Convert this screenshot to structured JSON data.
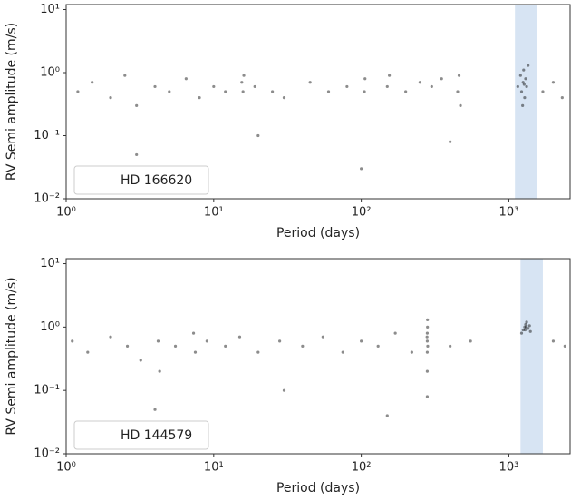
{
  "chart_data": [
    {
      "type": "scatter",
      "xlabel": "Period (days)",
      "ylabel": "RV Semi amplitude (m/s)",
      "log_x": true,
      "log_y": true,
      "legend": "lower left",
      "xlim": [
        1,
        2600
      ],
      "ylim": [
        0.01,
        12
      ],
      "xticks": [
        {
          "value": 1,
          "label": "10⁰"
        },
        {
          "value": 10,
          "label": "10¹"
        },
        {
          "value": 100,
          "label": "10²"
        },
        {
          "value": 1000,
          "label": "10³"
        }
      ],
      "yticks": [
        {
          "value": 0.01,
          "label": "10⁻²"
        },
        {
          "value": 0.1,
          "label": "10⁻¹"
        },
        {
          "value": 1,
          "label": "10⁰"
        },
        {
          "value": 10,
          "label": "10¹"
        }
      ],
      "span": {
        "x": [
          1100,
          1550
        ],
        "color": "#c6d9ee"
      },
      "series": [
        {
          "name": "HD 166620",
          "color": "#000000",
          "x": [
            1.2,
            1.5,
            2,
            2.5,
            3,
            4,
            5,
            6.5,
            8,
            10,
            12,
            15.5,
            15.8,
            16,
            19,
            25,
            30,
            45,
            60,
            80,
            105,
            106,
            150,
            155,
            200,
            250,
            300,
            350,
            450,
            460,
            470,
            1150,
            1200,
            1220,
            1250,
            1260,
            1280,
            1300,
            1320,
            1350,
            1240,
            1270,
            1700,
            2000,
            2300,
            3,
            20,
            100,
            400
          ],
          "y": [
            0.5,
            0.7,
            0.4,
            0.9,
            0.3,
            0.6,
            0.5,
            0.8,
            0.4,
            0.6,
            0.5,
            0.7,
            0.5,
            0.9,
            0.6,
            0.5,
            0.4,
            0.7,
            0.5,
            0.6,
            0.5,
            0.8,
            0.6,
            0.9,
            0.5,
            0.7,
            0.6,
            0.8,
            0.5,
            0.9,
            0.3,
            0.6,
            0.9,
            0.5,
            0.7,
            1.1,
            0.4,
            0.8,
            0.6,
            1.3,
            0.3,
            0.65,
            0.5,
            0.7,
            0.4,
            0.05,
            0.1,
            0.03,
            0.08
          ]
        }
      ]
    },
    {
      "type": "scatter",
      "xlabel": "Period (days)",
      "ylabel": "RV Semi amplitude (m/s)",
      "log_x": true,
      "log_y": true,
      "legend": "lower left",
      "xlim": [
        1,
        2600
      ],
      "ylim": [
        0.01,
        12
      ],
      "xticks": [
        {
          "value": 1,
          "label": "10⁰"
        },
        {
          "value": 10,
          "label": "10¹"
        },
        {
          "value": 100,
          "label": "10²"
        },
        {
          "value": 1000,
          "label": "10³"
        }
      ],
      "yticks": [
        {
          "value": 0.01,
          "label": "10⁻²"
        },
        {
          "value": 0.1,
          "label": "10⁻¹"
        },
        {
          "value": 1,
          "label": "10⁰"
        },
        {
          "value": 10,
          "label": "10¹"
        }
      ],
      "span": {
        "x": [
          1200,
          1700
        ],
        "color": "#c6d9ee"
      },
      "series": [
        {
          "name": "HD 144579",
          "color": "#000000",
          "x": [
            1.1,
            1.4,
            2,
            2.6,
            3.2,
            4.2,
            4.3,
            5.5,
            7.3,
            7.5,
            9,
            12,
            15,
            20,
            28,
            40,
            55,
            75,
            100,
            130,
            170,
            220,
            280,
            280,
            280,
            280,
            281,
            281,
            282,
            279,
            400,
            550,
            1220,
            1250,
            1280,
            1300,
            1320,
            1350,
            1380,
            1400,
            1310,
            1290,
            2000,
            2400,
            4,
            30,
            150,
            280
          ],
          "y": [
            0.6,
            0.4,
            0.7,
            0.5,
            0.3,
            0.6,
            0.2,
            0.5,
            0.8,
            0.4,
            0.6,
            0.5,
            0.7,
            0.4,
            0.6,
            0.5,
            0.7,
            0.4,
            0.6,
            0.5,
            0.8,
            0.4,
            0.2,
            0.4,
            0.6,
            0.8,
            1.0,
            1.3,
            0.5,
            0.7,
            0.5,
            0.6,
            0.8,
            0.9,
            1.0,
            1.1,
            1.2,
            0.95,
            1.05,
            0.85,
            1.0,
            0.9,
            0.6,
            0.5,
            0.05,
            0.1,
            0.04,
            0.08
          ]
        }
      ]
    }
  ]
}
